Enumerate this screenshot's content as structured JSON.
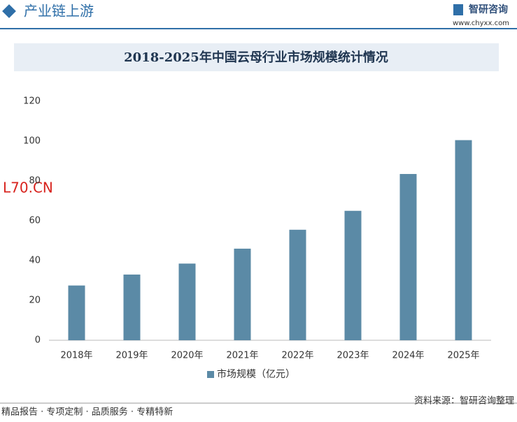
{
  "header": {
    "section": "产业链上游",
    "brand": "智研咨询",
    "url": "www.chyxx.com"
  },
  "overlay_text": "L70.CN",
  "chart_data": {
    "type": "bar",
    "title": "2018-2025年中国云母行业市场规模统计情况",
    "categories": [
      "2018年",
      "2019年",
      "2020年",
      "2021年",
      "2022年",
      "2023年",
      "2024年",
      "2025年"
    ],
    "series": [
      {
        "name": "市场规模（亿元）",
        "color": "#5b8aa6",
        "values": [
          27.5,
          33,
          38.5,
          46,
          55.5,
          65,
          83.5,
          100.5
        ]
      }
    ],
    "ylim": [
      0,
      120
    ],
    "yticks": [
      0,
      20,
      40,
      60,
      80,
      100,
      120
    ],
    "grid": false,
    "legend": "bottom"
  },
  "footer": {
    "tagline": "精品报告 · 专项定制 · 品质服务 · 专精特新",
    "source": "资料来源：智研咨询整理"
  }
}
